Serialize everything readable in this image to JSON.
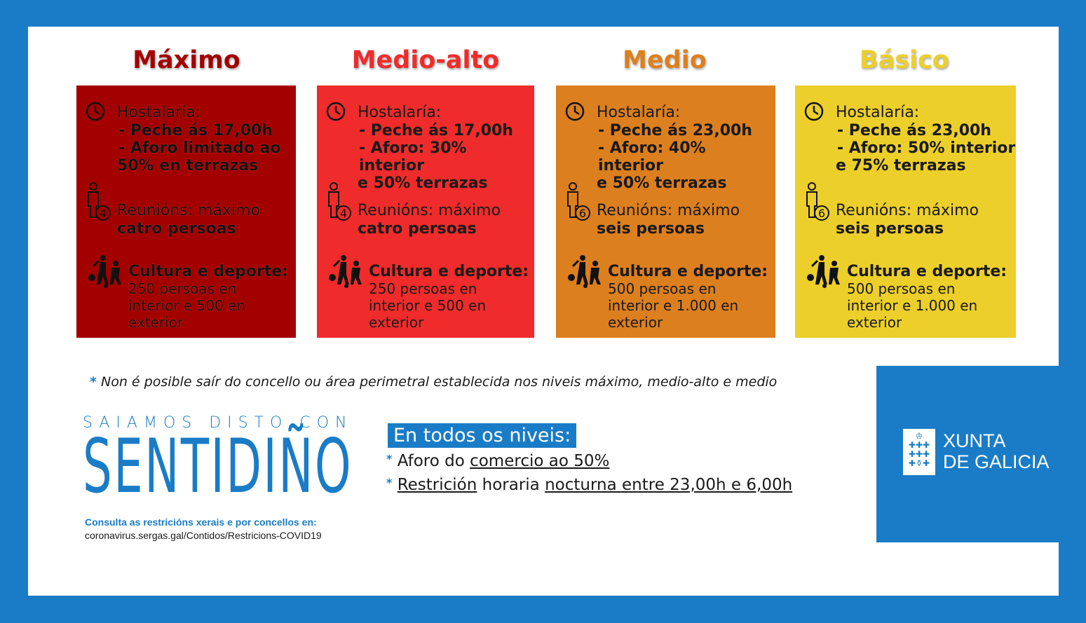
{
  "colors": {
    "background": "#1a7cc6",
    "maximo": "#a30000",
    "medio_alto": "#f02b2b",
    "medio": "#dc7f1f",
    "basico": "#eccf2a"
  },
  "levels": [
    {
      "title": "Máximo",
      "title_color": "#a30000",
      "card_color": "#a30000",
      "hostalaria_header": "Hostalaría:",
      "hostalaria_line1": "- Peche ás 17,00h",
      "hostalaria_line2": "- Aforo limitado ao",
      "hostalaria_line3": "50% en terrazas",
      "reunion_badge": "4",
      "reunion_text": "Reunións: máximo",
      "reunion_bold": "catro persoas",
      "cultura_header": "Cultura e deporte:",
      "cultura_line1": "250 persoas en",
      "cultura_line2": "interior e 500 en",
      "cultura_line3": "exterior"
    },
    {
      "title": "Medio-alto",
      "title_color": "#f02b2b",
      "card_color": "#f02b2b",
      "hostalaria_header": "Hostalaría:",
      "hostalaria_line1": "- Peche ás 17,00h",
      "hostalaria_line2": "- Aforo: 30% interior",
      "hostalaria_line3": "e 50% terrazas",
      "reunion_badge": "4",
      "reunion_text": "Reunións: máximo",
      "reunion_bold": "catro persoas",
      "cultura_header": "Cultura e deporte:",
      "cultura_line1": "250 persoas en",
      "cultura_line2": "interior e 500 en",
      "cultura_line3": "exterior"
    },
    {
      "title": "Medio",
      "title_color": "#dc7f1f",
      "card_color": "#dc7f1f",
      "hostalaria_header": "Hostalaría:",
      "hostalaria_line1": "- Peche ás 23,00h",
      "hostalaria_line2": "- Aforo: 40% interior",
      "hostalaria_line3": "e 50% terrazas",
      "reunion_badge": "6",
      "reunion_text": "Reunións: máximo",
      "reunion_bold": "seis persoas",
      "cultura_header": "Cultura e deporte:",
      "cultura_line1": "500 persoas en",
      "cultura_line2": "interior e 1.000 en",
      "cultura_line3": "exterior"
    },
    {
      "title": "Básico",
      "title_color": "#eccf2a",
      "card_color": "#eccf2a",
      "hostalaria_header": "Hostalaría:",
      "hostalaria_line1": "- Peche ás 23,00h",
      "hostalaria_line2": "- Aforo: 50% interior",
      "hostalaria_line3": "e 75% terrazas",
      "reunion_badge": "6",
      "reunion_text": "Reunións: máximo",
      "reunion_bold": "seis persoas",
      "cultura_header": "Cultura e deporte:",
      "cultura_line1": "500 persoas en",
      "cultura_line2": "interior e 1.000 en",
      "cultura_line3": "exterior"
    }
  ],
  "note": {
    "star": "*",
    "text": "Non é posible saír do concello ou área perimetral establecida nos niveis máximo, medio-alto e medio"
  },
  "slogan": {
    "top": "SAIAMOS DISTO CON",
    "big": "SENTIDIÑO"
  },
  "consulta": {
    "label": "Consulta as restricións xerais e por concellos en:",
    "url": "coronavirus.sergas.gal/Contidos/Restricions-COVID19"
  },
  "all_levels": {
    "title": "En todos os niveis:",
    "item1_prefix": "Aforo do",
    "item1_link": "comercio ao 50%",
    "item2_link1": "Restrición",
    "item2_mid": "horaria",
    "item2_link2": "nocturna entre 23,00h e 6,00h"
  },
  "brand": {
    "line1": "XUNTA",
    "line2": "DE GALICIA"
  },
  "icons": [
    "clock-icon",
    "person-group-icon",
    "sports-culture-icon",
    "xunta-logo-icon"
  ]
}
